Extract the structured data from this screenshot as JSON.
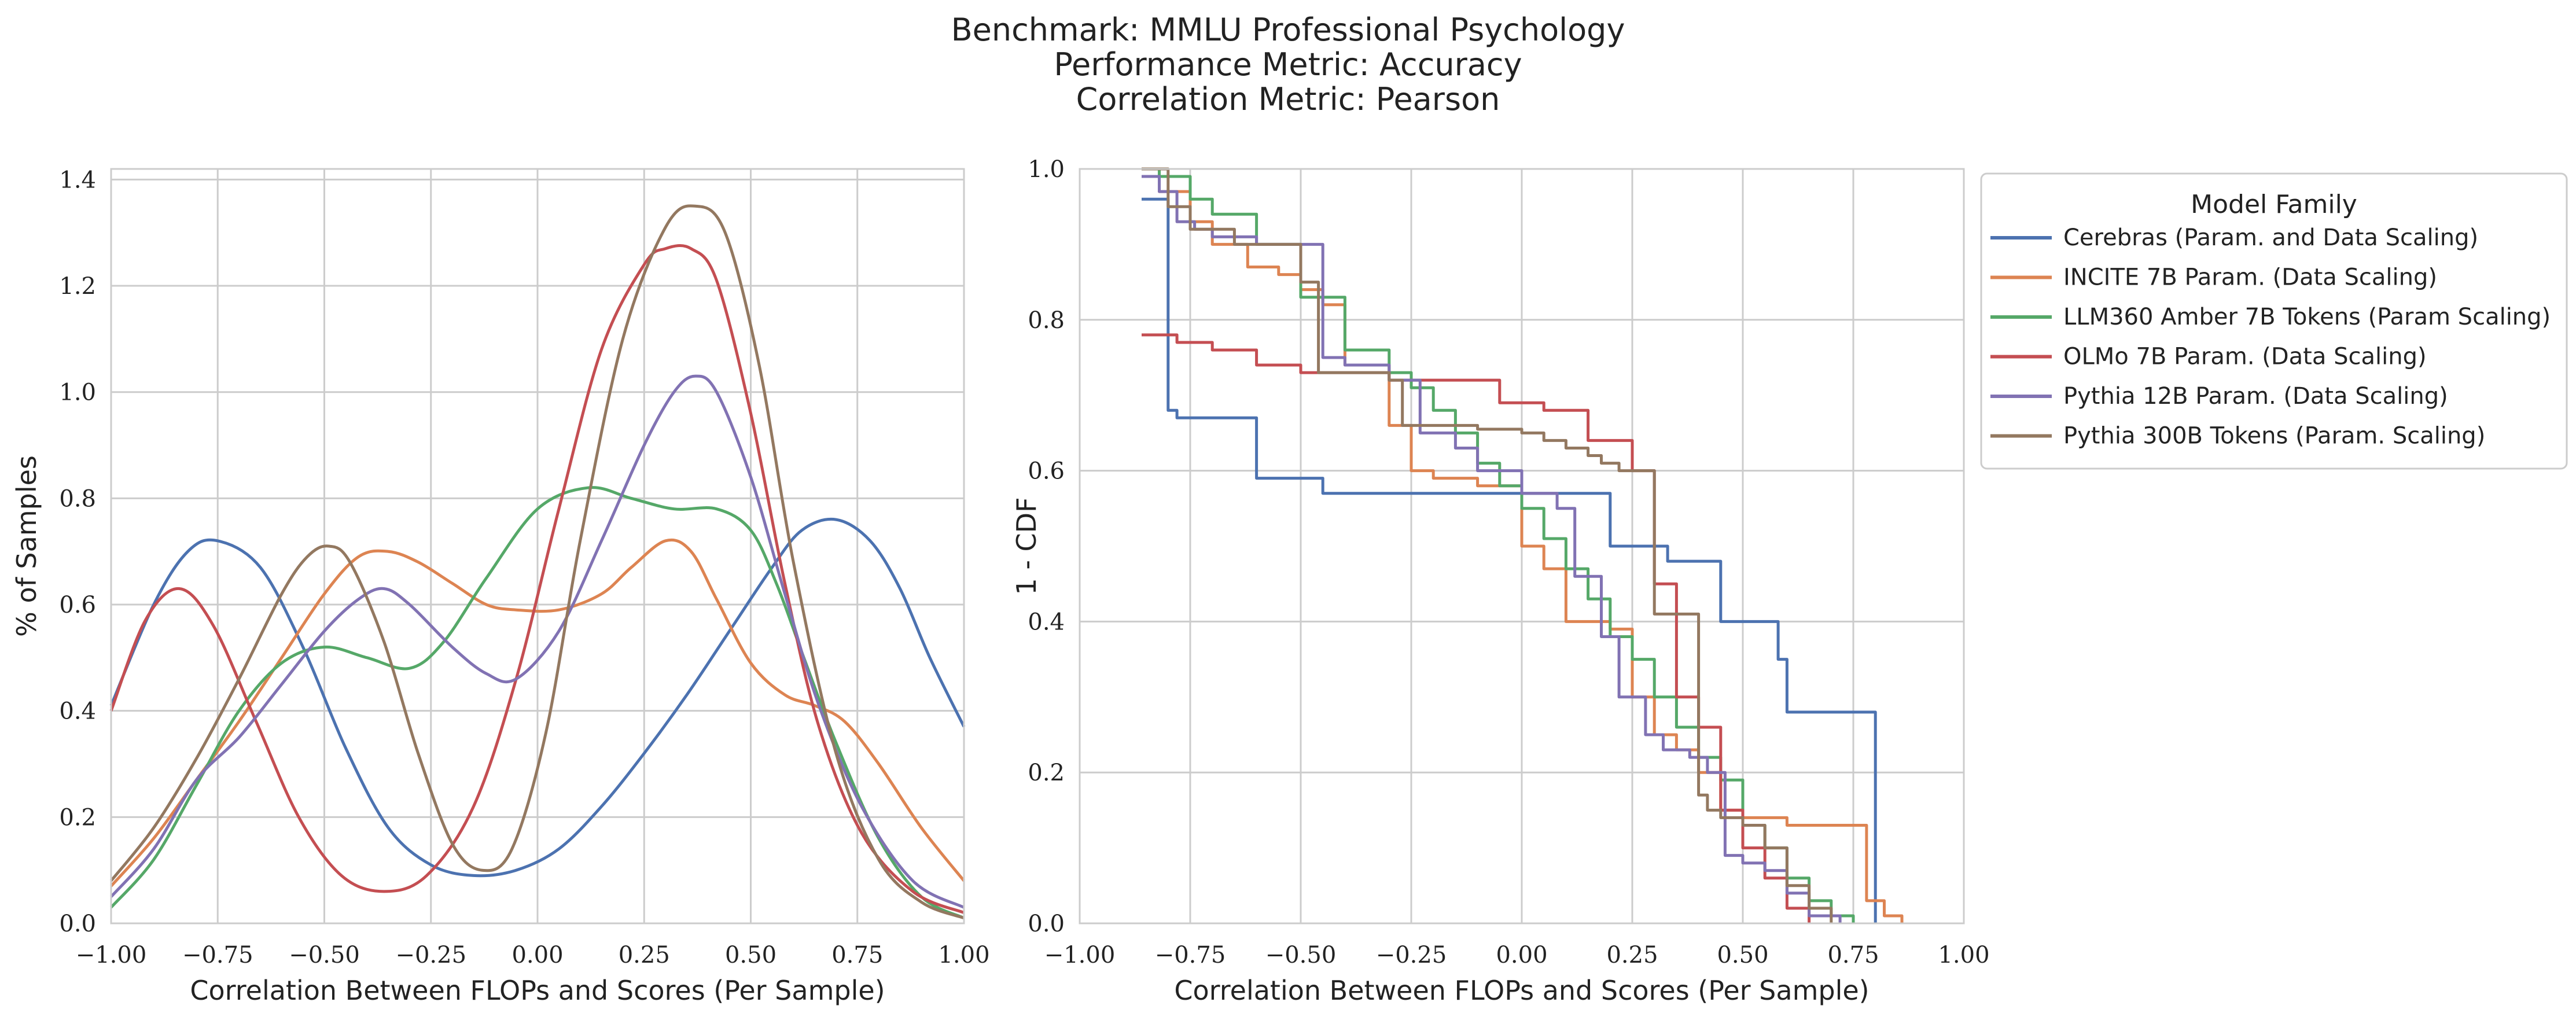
{
  "title_lines": [
    "Benchmark: MMLU Professional Psychology",
    "Performance Metric: Accuracy",
    "Correlation Metric: Pearson"
  ],
  "colors": {
    "Cerebras (Param. and Data Scaling)": "#4c72b0",
    "INCITE 7B Param. (Data Scaling)": "#dd8452",
    "LLM360 Amber 7B Tokens (Param Scaling)": "#55a868",
    "OLMo 7B Param. (Data Scaling)": "#c44e52",
    "Pythia 12B Param. (Data Scaling)": "#8172b3",
    "Pythia 300B Tokens (Param. Scaling)": "#937860"
  },
  "chart_data": [
    {
      "type": "line",
      "subtype": "kde",
      "xlabel": "Correlation Between FLOPs and Scores (Per Sample)",
      "ylabel": "% of Samples",
      "xlim": [
        -1.0,
        1.0
      ],
      "ylim": [
        0.0,
        1.42
      ],
      "xticks": [
        "−1.00",
        "−0.75",
        "−0.50",
        "−0.25",
        "0.00",
        "0.25",
        "0.50",
        "0.75",
        "1.00"
      ],
      "yticks": [
        "0.0",
        "0.2",
        "0.4",
        "0.6",
        "0.8",
        "1.0",
        "1.2",
        "1.4"
      ],
      "grid": true,
      "series": [
        {
          "name": "Cerebras (Param. and Data Scaling)",
          "x": [
            -1.0,
            -0.9,
            -0.82,
            -0.75,
            -0.65,
            -0.55,
            -0.45,
            -0.35,
            -0.25,
            -0.15,
            -0.05,
            0.05,
            0.15,
            0.25,
            0.35,
            0.45,
            0.55,
            0.62,
            0.7,
            0.78,
            0.85,
            0.92,
            1.0
          ],
          "y": [
            0.41,
            0.6,
            0.7,
            0.72,
            0.67,
            0.52,
            0.33,
            0.18,
            0.11,
            0.09,
            0.1,
            0.14,
            0.22,
            0.32,
            0.43,
            0.55,
            0.67,
            0.74,
            0.76,
            0.72,
            0.63,
            0.5,
            0.37
          ]
        },
        {
          "name": "INCITE 7B Param. (Data Scaling)",
          "x": [
            -1.0,
            -0.9,
            -0.8,
            -0.7,
            -0.6,
            -0.5,
            -0.42,
            -0.35,
            -0.28,
            -0.2,
            -0.12,
            -0.05,
            0.05,
            0.15,
            0.22,
            0.3,
            0.36,
            0.42,
            0.5,
            0.58,
            0.65,
            0.72,
            0.8,
            0.9,
            1.0
          ],
          "y": [
            0.07,
            0.16,
            0.27,
            0.38,
            0.5,
            0.62,
            0.69,
            0.7,
            0.68,
            0.64,
            0.6,
            0.59,
            0.59,
            0.62,
            0.67,
            0.72,
            0.7,
            0.61,
            0.49,
            0.43,
            0.41,
            0.38,
            0.3,
            0.18,
            0.08
          ]
        },
        {
          "name": "LLM360 Amber 7B Tokens (Param Scaling)",
          "x": [
            -1.0,
            -0.9,
            -0.8,
            -0.7,
            -0.6,
            -0.5,
            -0.4,
            -0.3,
            -0.22,
            -0.12,
            0.0,
            0.12,
            0.22,
            0.32,
            0.42,
            0.5,
            0.56,
            0.62,
            0.7,
            0.8,
            0.9,
            1.0
          ],
          "y": [
            0.03,
            0.12,
            0.26,
            0.4,
            0.49,
            0.52,
            0.5,
            0.48,
            0.53,
            0.65,
            0.78,
            0.82,
            0.8,
            0.78,
            0.78,
            0.74,
            0.64,
            0.51,
            0.34,
            0.16,
            0.05,
            0.01
          ]
        },
        {
          "name": "OLMo 7B Param. (Data Scaling)",
          "x": [
            -1.0,
            -0.92,
            -0.84,
            -0.76,
            -0.66,
            -0.56,
            -0.46,
            -0.36,
            -0.26,
            -0.15,
            -0.05,
            0.05,
            0.15,
            0.25,
            0.3,
            0.36,
            0.42,
            0.5,
            0.58,
            0.66,
            0.76,
            0.88,
            1.0
          ],
          "y": [
            0.4,
            0.57,
            0.63,
            0.56,
            0.38,
            0.2,
            0.09,
            0.06,
            0.09,
            0.22,
            0.46,
            0.78,
            1.08,
            1.24,
            1.27,
            1.27,
            1.21,
            0.96,
            0.64,
            0.37,
            0.17,
            0.06,
            0.02
          ]
        },
        {
          "name": "Pythia 12B Param. (Data Scaling)",
          "x": [
            -1.0,
            -0.9,
            -0.8,
            -0.7,
            -0.6,
            -0.5,
            -0.42,
            -0.36,
            -0.3,
            -0.2,
            -0.12,
            -0.05,
            0.05,
            0.15,
            0.25,
            0.32,
            0.37,
            0.42,
            0.5,
            0.58,
            0.66,
            0.76,
            0.88,
            1.0
          ],
          "y": [
            0.05,
            0.14,
            0.27,
            0.35,
            0.45,
            0.55,
            0.61,
            0.63,
            0.6,
            0.52,
            0.47,
            0.46,
            0.55,
            0.72,
            0.9,
            1.0,
            1.03,
            1.0,
            0.84,
            0.62,
            0.41,
            0.22,
            0.08,
            0.03
          ]
        },
        {
          "name": "Pythia 300B Tokens (Param. Scaling)",
          "x": [
            -1.0,
            -0.9,
            -0.8,
            -0.7,
            -0.6,
            -0.54,
            -0.49,
            -0.44,
            -0.36,
            -0.28,
            -0.2,
            -0.13,
            -0.06,
            0.02,
            0.1,
            0.2,
            0.3,
            0.37,
            0.44,
            0.52,
            0.6,
            0.7,
            0.8,
            0.9,
            1.0
          ],
          "y": [
            0.08,
            0.18,
            0.31,
            0.46,
            0.62,
            0.69,
            0.71,
            0.68,
            0.53,
            0.32,
            0.15,
            0.1,
            0.14,
            0.36,
            0.72,
            1.1,
            1.31,
            1.35,
            1.3,
            1.05,
            0.68,
            0.32,
            0.12,
            0.04,
            0.01
          ]
        }
      ]
    },
    {
      "type": "line",
      "subtype": "step",
      "xlabel": "Correlation Between FLOPs and Scores (Per Sample)",
      "ylabel": "1 - CDF",
      "xlim": [
        -1.0,
        1.0
      ],
      "ylim": [
        0.0,
        1.0
      ],
      "xticks": [
        "−1.00",
        "−0.75",
        "−0.50",
        "−0.25",
        "0.00",
        "0.25",
        "0.50",
        "0.75",
        "1.00"
      ],
      "yticks": [
        "0.0",
        "0.2",
        "0.4",
        "0.6",
        "0.8",
        "1.0"
      ],
      "grid": true,
      "legend": {
        "title": "Model Family",
        "placement": "outside-right"
      },
      "series": [
        {
          "name": "Cerebras (Param. and Data Scaling)",
          "x": [
            -0.86,
            -0.8,
            -0.78,
            -0.6,
            -0.45,
            0.2,
            0.33,
            0.45,
            0.58,
            0.6,
            0.8
          ],
          "y": [
            0.96,
            0.68,
            0.67,
            0.59,
            0.57,
            0.5,
            0.48,
            0.4,
            0.35,
            0.28,
            0.0
          ]
        },
        {
          "name": "INCITE 7B Param. (Data Scaling)",
          "x": [
            -0.86,
            -0.82,
            -0.75,
            -0.7,
            -0.62,
            -0.55,
            -0.5,
            -0.45,
            -0.4,
            -0.3,
            -0.25,
            -0.2,
            -0.1,
            0.0,
            0.05,
            0.1,
            0.2,
            0.25,
            0.3,
            0.35,
            0.4,
            0.45,
            0.5,
            0.55,
            0.6,
            0.62,
            0.78,
            0.82,
            0.86
          ],
          "y": [
            1.0,
            0.97,
            0.93,
            0.9,
            0.87,
            0.86,
            0.84,
            0.82,
            0.74,
            0.66,
            0.6,
            0.59,
            0.58,
            0.5,
            0.47,
            0.4,
            0.39,
            0.3,
            0.25,
            0.23,
            0.2,
            0.15,
            0.14,
            0.14,
            0.13,
            0.13,
            0.03,
            0.01,
            0.0
          ]
        },
        {
          "name": "LLM360 Amber 7B Tokens (Param Scaling)",
          "x": [
            -0.86,
            -0.82,
            -0.8,
            -0.75,
            -0.7,
            -0.6,
            -0.5,
            -0.4,
            -0.3,
            -0.25,
            -0.2,
            -0.15,
            -0.1,
            -0.05,
            0.0,
            0.05,
            0.1,
            0.15,
            0.2,
            0.25,
            0.3,
            0.35,
            0.4,
            0.45,
            0.5,
            0.55,
            0.6,
            0.65,
            0.7,
            0.75
          ],
          "y": [
            1.0,
            0.99,
            0.99,
            0.96,
            0.94,
            0.9,
            0.83,
            0.76,
            0.73,
            0.71,
            0.68,
            0.65,
            0.61,
            0.58,
            0.55,
            0.51,
            0.47,
            0.43,
            0.38,
            0.35,
            0.3,
            0.26,
            0.22,
            0.19,
            0.13,
            0.1,
            0.06,
            0.03,
            0.01,
            0.0
          ]
        },
        {
          "name": "OLMo 7B Param. (Data Scaling)",
          "x": [
            -0.86,
            -0.78,
            -0.7,
            -0.6,
            -0.5,
            -0.3,
            -0.05,
            0.05,
            0.15,
            0.25,
            0.3,
            0.35,
            0.4,
            0.45,
            0.5,
            0.55,
            0.6,
            0.65
          ],
          "y": [
            0.78,
            0.77,
            0.76,
            0.74,
            0.73,
            0.72,
            0.69,
            0.68,
            0.64,
            0.6,
            0.45,
            0.3,
            0.26,
            0.15,
            0.1,
            0.06,
            0.02,
            0.0
          ]
        },
        {
          "name": "Pythia 12B Param. (Data Scaling)",
          "x": [
            -0.86,
            -0.82,
            -0.78,
            -0.74,
            -0.7,
            -0.6,
            -0.45,
            -0.4,
            -0.3,
            -0.23,
            -0.15,
            -0.1,
            0.0,
            0.08,
            0.12,
            0.18,
            0.22,
            0.28,
            0.32,
            0.38,
            0.42,
            0.46,
            0.5,
            0.55,
            0.6,
            0.65,
            0.72
          ],
          "y": [
            0.99,
            0.97,
            0.93,
            0.92,
            0.91,
            0.9,
            0.75,
            0.74,
            0.72,
            0.65,
            0.63,
            0.6,
            0.57,
            0.55,
            0.46,
            0.38,
            0.3,
            0.25,
            0.23,
            0.22,
            0.2,
            0.09,
            0.08,
            0.07,
            0.04,
            0.01,
            0.0
          ]
        },
        {
          "name": "Pythia 300B Tokens (Param. Scaling)",
          "x": [
            -0.86,
            -0.8,
            -0.75,
            -0.65,
            -0.5,
            -0.46,
            -0.3,
            -0.27,
            -0.1,
            0.0,
            0.05,
            0.1,
            0.15,
            0.18,
            0.22,
            0.3,
            0.4,
            0.42,
            0.45,
            0.5,
            0.55,
            0.6,
            0.65,
            0.7
          ],
          "y": [
            1.0,
            0.95,
            0.92,
            0.9,
            0.85,
            0.73,
            0.72,
            0.66,
            0.655,
            0.65,
            0.64,
            0.63,
            0.62,
            0.61,
            0.6,
            0.41,
            0.17,
            0.15,
            0.14,
            0.13,
            0.1,
            0.05,
            0.02,
            0.0
          ]
        }
      ]
    }
  ]
}
